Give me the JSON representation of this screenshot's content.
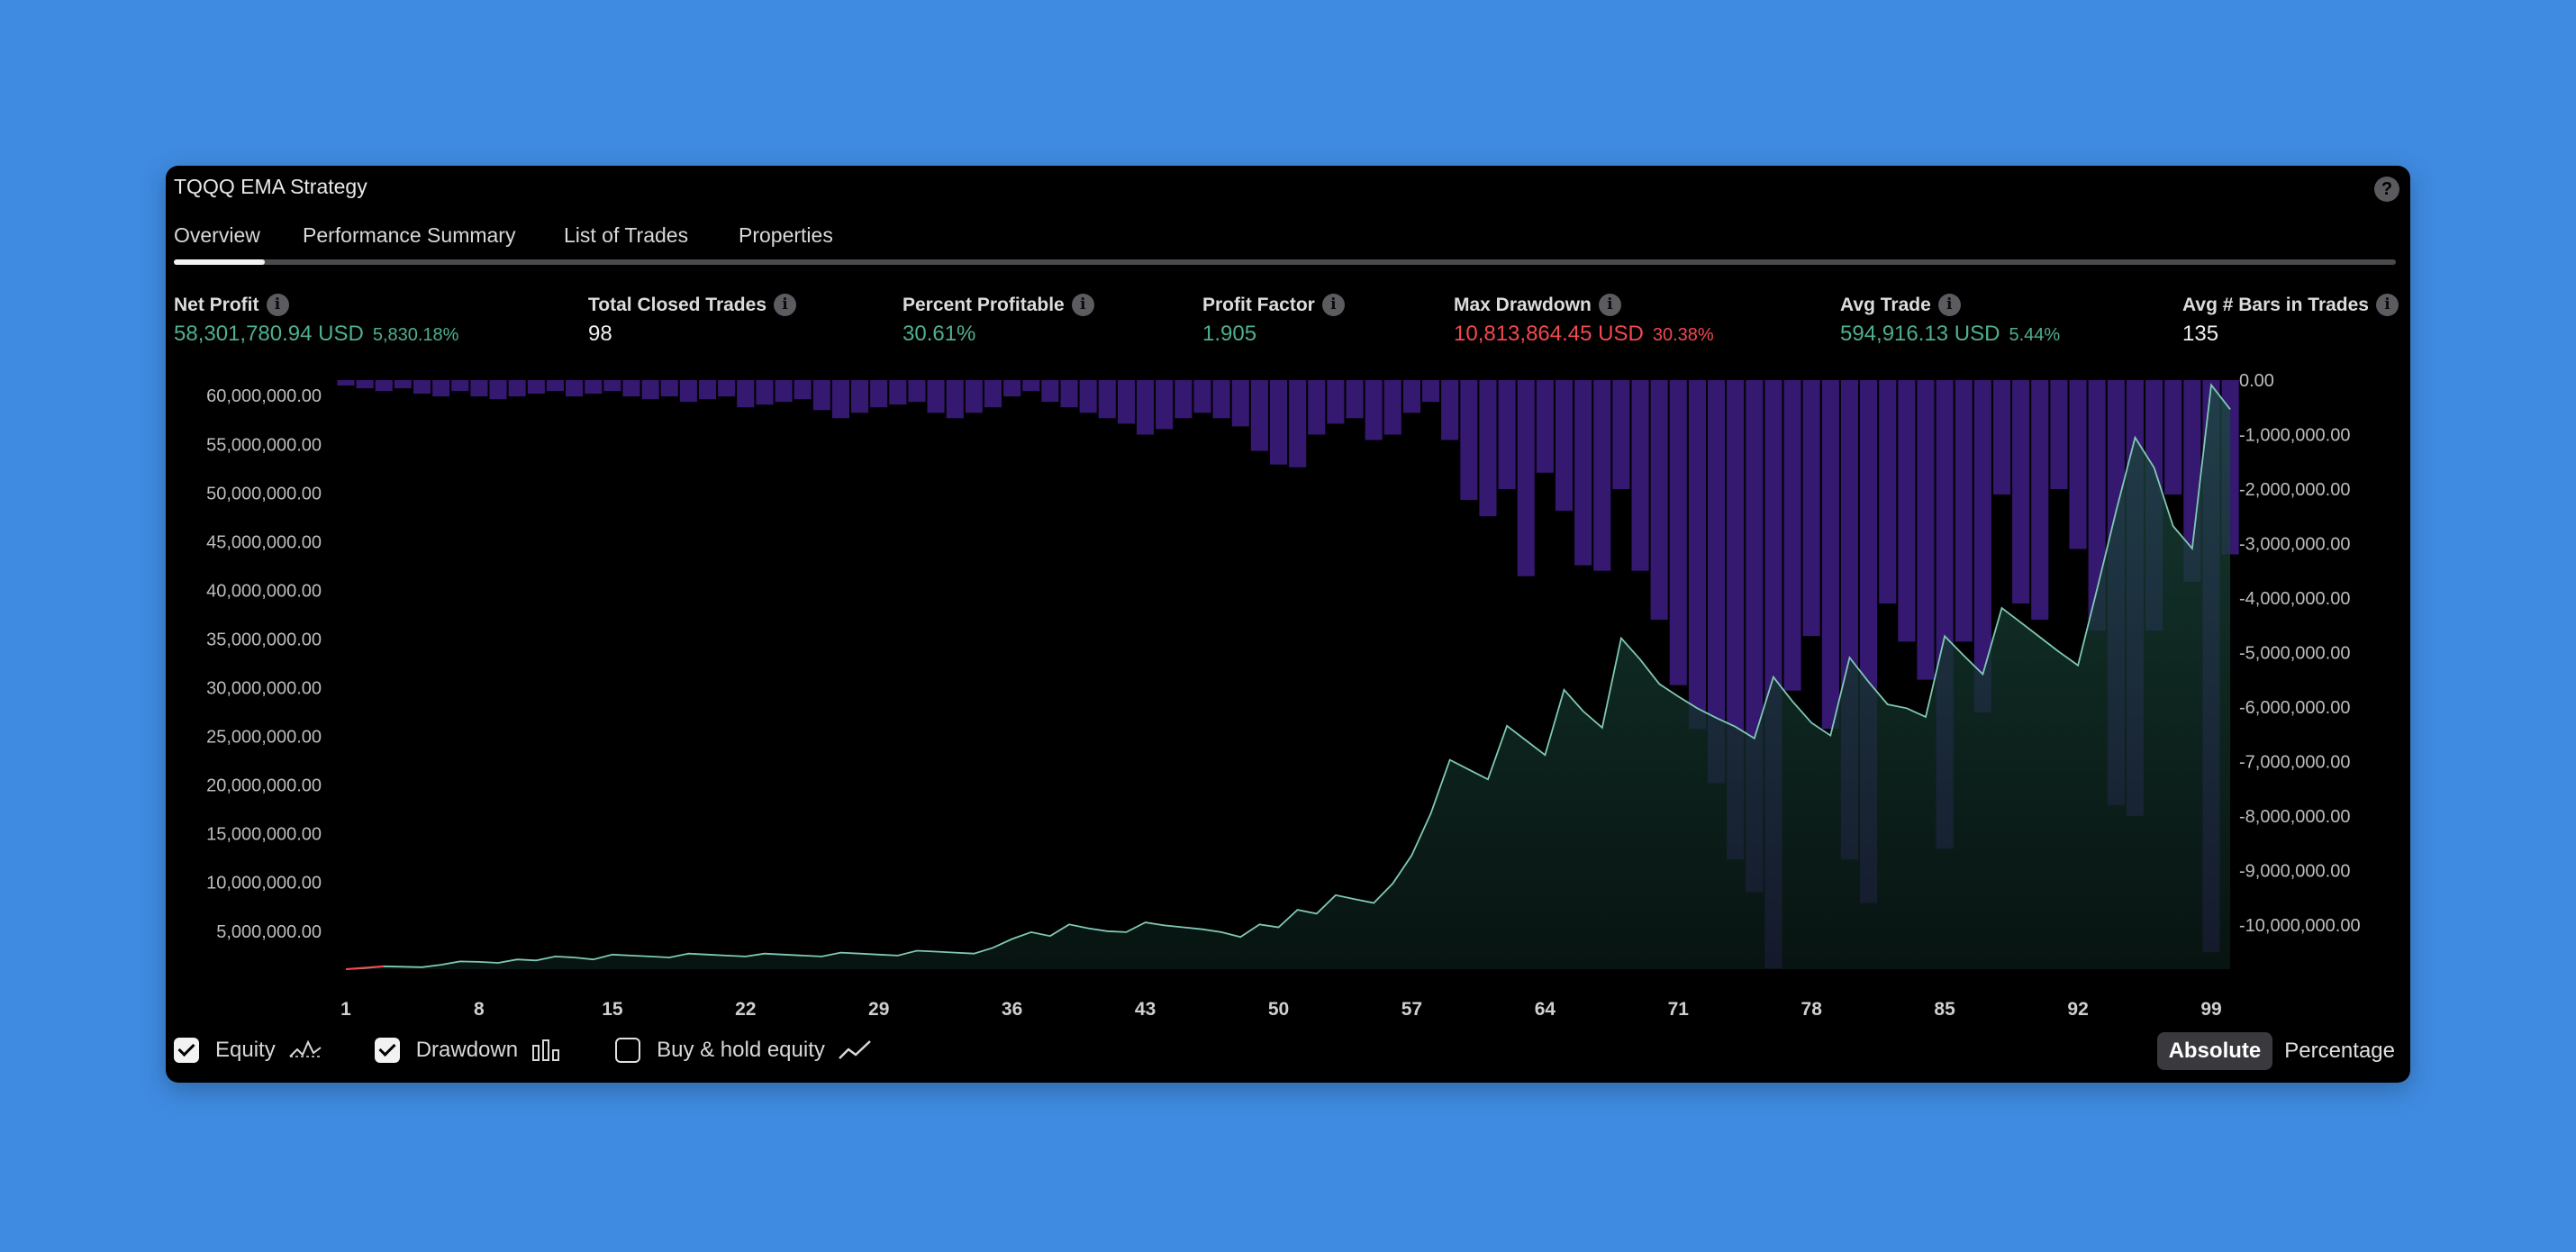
{
  "window": {
    "title": "TQQQ EMA Strategy",
    "help_icon": "question-icon"
  },
  "tabs": [
    {
      "label": "Overview",
      "active": true
    },
    {
      "label": "Performance Summary",
      "active": false
    },
    {
      "label": "List of Trades",
      "active": false
    },
    {
      "label": "Properties",
      "active": false
    }
  ],
  "stats": {
    "net_profit": {
      "label": "Net Profit",
      "value": "58,301,780.94 USD",
      "sub": "5,830.18%"
    },
    "total_closed_trades": {
      "label": "Total Closed Trades",
      "value": "98"
    },
    "percent_profitable": {
      "label": "Percent Profitable",
      "value": "30.61%"
    },
    "profit_factor": {
      "label": "Profit Factor",
      "value": "1.905"
    },
    "max_drawdown": {
      "label": "Max Drawdown",
      "value": "10,813,864.45 USD",
      "sub": "30.38%"
    },
    "avg_trade": {
      "label": "Avg Trade",
      "value": "594,916.13 USD",
      "sub": "5.44%"
    },
    "avg_bars": {
      "label": "Avg # Bars in Trades",
      "value": "135"
    }
  },
  "colors": {
    "positive": "#4fb08c",
    "negative": "#f2494f",
    "equity_line": "#7fc9b4",
    "drawdown_bar": "#3a1a78",
    "background": "#000000"
  },
  "chart_data": {
    "type": "area",
    "x_ticks": [
      "1",
      "8",
      "15",
      "22",
      "29",
      "36",
      "43",
      "50",
      "57",
      "64",
      "71",
      "78",
      "85",
      "92",
      "99"
    ],
    "xlim": [
      1,
      99
    ],
    "y_left_ticks": [
      "60,000,000.00",
      "55,000,000.00",
      "50,000,000.00",
      "45,000,000.00",
      "40,000,000.00",
      "35,000,000.00",
      "30,000,000.00",
      "25,000,000.00",
      "20,000,000.00",
      "15,000,000.00",
      "10,000,000.00",
      "5,000,000.00"
    ],
    "y_left_lim": [
      1000000,
      61500000
    ],
    "y_right_ticks": [
      "0.00",
      "-1,000,000.00",
      "-2,000,000.00",
      "-3,000,000.00",
      "-4,000,000.00",
      "-5,000,000.00",
      "-6,000,000.00",
      "-7,000,000.00",
      "-8,000,000.00",
      "-9,000,000.00",
      "-10,000,000.00"
    ],
    "y_right_lim": [
      -10813864,
      0
    ],
    "series": [
      {
        "name": "Equity",
        "kind": "line-area",
        "axis": "left",
        "values": [
          1000000,
          1100000,
          1300000,
          1250000,
          1200000,
          1450000,
          1800000,
          1750000,
          1650000,
          2000000,
          1900000,
          2300000,
          2200000,
          2000000,
          2500000,
          2400000,
          2300000,
          2200000,
          2600000,
          2500000,
          2400000,
          2300000,
          2600000,
          2500000,
          2400000,
          2300000,
          2700000,
          2600000,
          2500000,
          2400000,
          2900000,
          2800000,
          2700000,
          2600000,
          3200000,
          4100000,
          4800000,
          4400000,
          5600000,
          5200000,
          4900000,
          4800000,
          5800000,
          5500000,
          5300000,
          5100000,
          4800000,
          4300000,
          5600000,
          5300000,
          7100000,
          6700000,
          8600000,
          8200000,
          7800000,
          9800000,
          12700000,
          17000000,
          22500000,
          21500000,
          20500000,
          26000000,
          24500000,
          23000000,
          29700000,
          27500000,
          25800000,
          35000000,
          32800000,
          30300000,
          29000000,
          27800000,
          26800000,
          25900000,
          24700000,
          31000000,
          28500000,
          26300000,
          25000000,
          33000000,
          30500000,
          28200000,
          27800000,
          26900000,
          35200000,
          33200000,
          31300000,
          38100000,
          36600000,
          35100000,
          33600000,
          32200000,
          40000000,
          48000000,
          55600000,
          52500000,
          46500000,
          44200000,
          61000000,
          58500000
        ]
      },
      {
        "name": "Drawdown",
        "kind": "bars",
        "axis": "right",
        "values": [
          -100000,
          -150000,
          -200000,
          -150000,
          -250000,
          -300000,
          -200000,
          -300000,
          -350000,
          -300000,
          -250000,
          -200000,
          -300000,
          -250000,
          -200000,
          -300000,
          -350000,
          -300000,
          -400000,
          -350000,
          -300000,
          -500000,
          -450000,
          -400000,
          -350000,
          -550000,
          -700000,
          -600000,
          -500000,
          -450000,
          -400000,
          -600000,
          -700000,
          -600000,
          -500000,
          -300000,
          -200000,
          -400000,
          -500000,
          -600000,
          -700000,
          -800000,
          -1000000,
          -900000,
          -700000,
          -600000,
          -700000,
          -850000,
          -1300000,
          -1550000,
          -1600000,
          -1000000,
          -800000,
          -700000,
          -1100000,
          -1000000,
          -600000,
          -400000,
          -1100000,
          -2200000,
          -2500000,
          -2000000,
          -3600000,
          -1700000,
          -2400000,
          -3400000,
          -3500000,
          -2000000,
          -3500000,
          -4400000,
          -5600000,
          -6400000,
          -7400000,
          -8800000,
          -9400000,
          -10800000,
          -5700000,
          -4700000,
          -6400000,
          -8800000,
          -9600000,
          -4100000,
          -4800000,
          -5500000,
          -8600000,
          -4800000,
          -6100000,
          -2100000,
          -4100000,
          -4400000,
          -2000000,
          -3100000,
          -4600000,
          -7800000,
          -8000000,
          -4600000,
          -2100000,
          -3700000,
          -10500000,
          -3200000
        ]
      }
    ],
    "legend": [
      {
        "label": "Equity",
        "checked": true,
        "icon": "equity-line-icon"
      },
      {
        "label": "Drawdown",
        "checked": true,
        "icon": "bar-chart-icon"
      },
      {
        "label": "Buy & hold equity",
        "checked": false,
        "icon": "trend-line-icon"
      }
    ],
    "grid": false
  },
  "mode": {
    "absolute": "Absolute",
    "percentage": "Percentage",
    "selected": "Absolute"
  }
}
